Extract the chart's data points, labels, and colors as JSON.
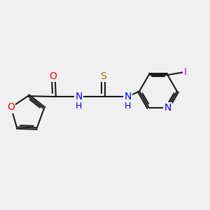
{
  "bg_color": "#f0f0f0",
  "bond_color": "#1a1a1a",
  "bond_width": 1.5,
  "atom_colors": {
    "O": "#ff0000",
    "N": "#0000ff",
    "S": "#808000",
    "I": "#cc00cc",
    "C": "#1a1a1a",
    "H": "#0000ff"
  },
  "font_size": 10,
  "dbo": 0.055
}
